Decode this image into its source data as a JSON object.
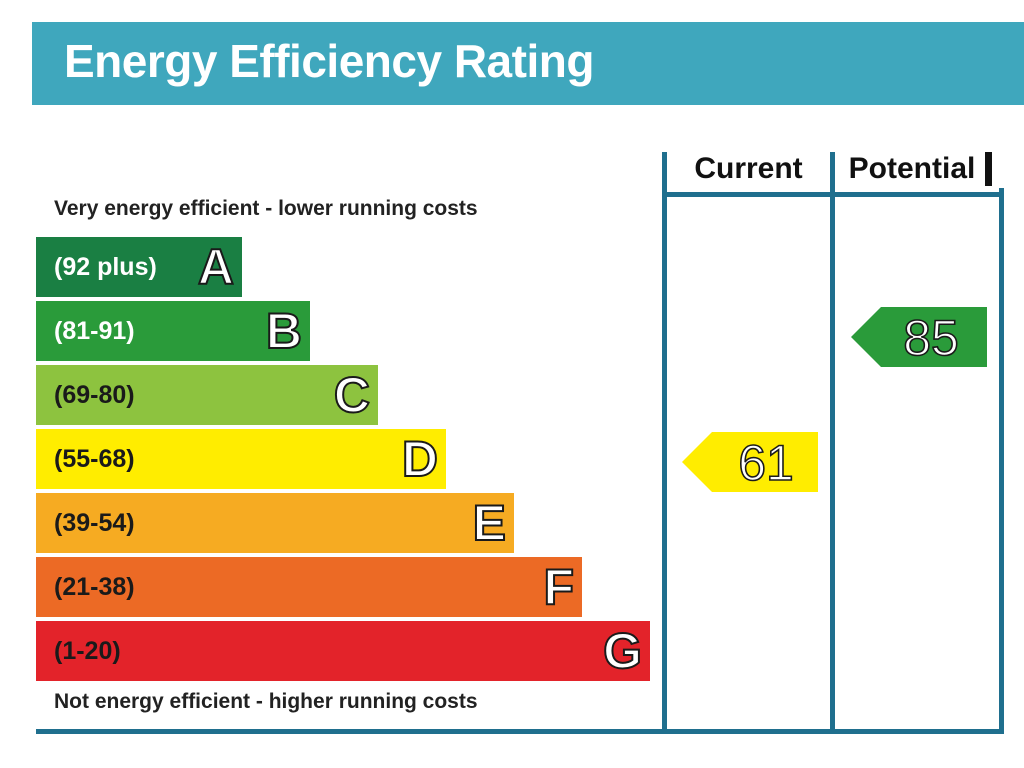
{
  "header": {
    "title": "Energy Efficiency Rating",
    "bg_color": "#3fa7bd"
  },
  "columns": {
    "current_label": "Current",
    "potential_label": "Potential"
  },
  "captions": {
    "top": "Very energy efficient - lower running costs",
    "bottom": "Not energy efficient - higher running costs"
  },
  "chart_data": {
    "type": "bar",
    "title": "Energy Efficiency Rating",
    "bands": [
      {
        "range": "(92 plus)",
        "letter": "A",
        "color": "#1a7f43",
        "text_color": "#ffffff"
      },
      {
        "range": "(81-91)",
        "letter": "B",
        "color": "#2a9b3a",
        "text_color": "#ffffff"
      },
      {
        "range": "(69-80)",
        "letter": "C",
        "color": "#8dc33f",
        "text_color": "#1a1a1a"
      },
      {
        "range": "(55-68)",
        "letter": "D",
        "color": "#ffed00",
        "text_color": "#1a1a1a"
      },
      {
        "range": "(39-54)",
        "letter": "E",
        "color": "#f6ab22",
        "text_color": "#1a1a1a"
      },
      {
        "range": "(21-38)",
        "letter": "F",
        "color": "#ec6a25",
        "text_color": "#1a1a1a"
      },
      {
        "range": "(1-20)",
        "letter": "G",
        "color": "#e3232a",
        "text_color": "#1a1a1a"
      }
    ],
    "current": {
      "value": 61,
      "band": "D",
      "color": "#ffed00"
    },
    "potential": {
      "value": 85,
      "band": "B",
      "color": "#2a9b3a"
    }
  }
}
